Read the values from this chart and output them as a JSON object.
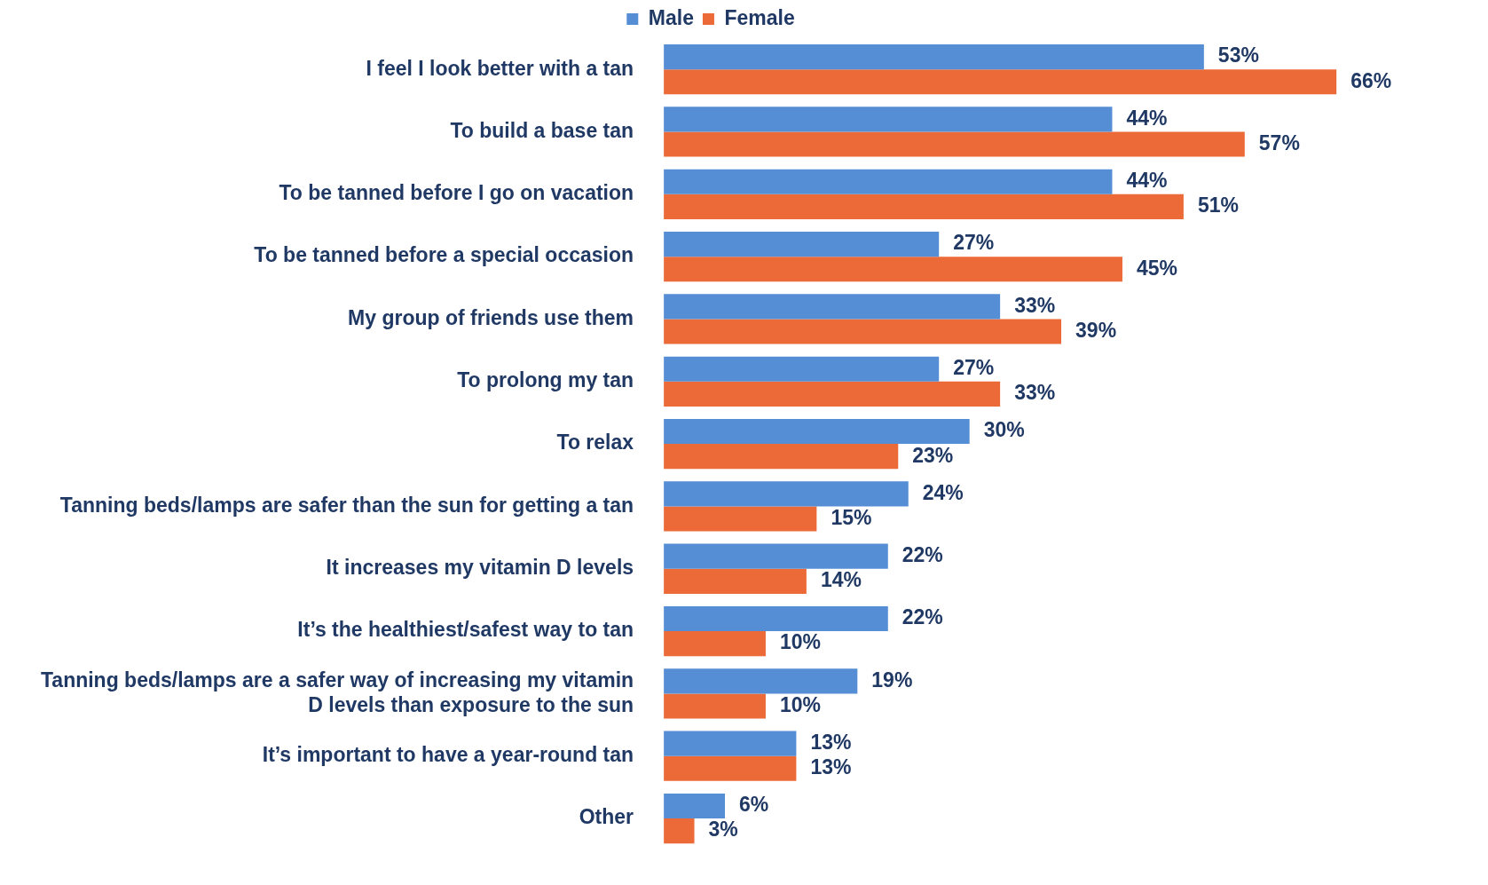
{
  "chart_data": {
    "type": "bar",
    "orientation": "horizontal",
    "categories": [
      "I feel I look better with a tan",
      "To build a base tan",
      "To be tanned before I go on vacation",
      "To be tanned before a special occasion",
      "My group of friends use them",
      "To prolong my tan",
      "To relax",
      "Tanning beds/lamps are safer than the sun for getting a tan",
      "It increases my vitamin D levels",
      "It’s the healthiest/safest way to tan",
      "Tanning beds/lamps are a safer way of increasing my vitamin D levels than exposure to the sun",
      "It’s important to have a year-round tan",
      "Other"
    ],
    "series": [
      {
        "name": "Male",
        "color": "#558ed5",
        "values": [
          53,
          44,
          44,
          27,
          33,
          27,
          30,
          24,
          22,
          22,
          19,
          13,
          6
        ],
        "value_labels": [
          "53%",
          "44%",
          "44%",
          "27%",
          "33%",
          "27%",
          "30%",
          "24%",
          "22%",
          "22%",
          "19%",
          "13%",
          "6%"
        ]
      },
      {
        "name": "Female",
        "color": "#ec6a37",
        "values": [
          66,
          57,
          51,
          45,
          39,
          33,
          23,
          15,
          14,
          10,
          10,
          13,
          3
        ],
        "value_labels": [
          "66%",
          "57%",
          "51%",
          "45%",
          "39%",
          "33%",
          "23%",
          "15%",
          "14%",
          "10%",
          "10%",
          "13%",
          "3%"
        ]
      }
    ],
    "legend": "top",
    "tick_labels": "y"
  }
}
